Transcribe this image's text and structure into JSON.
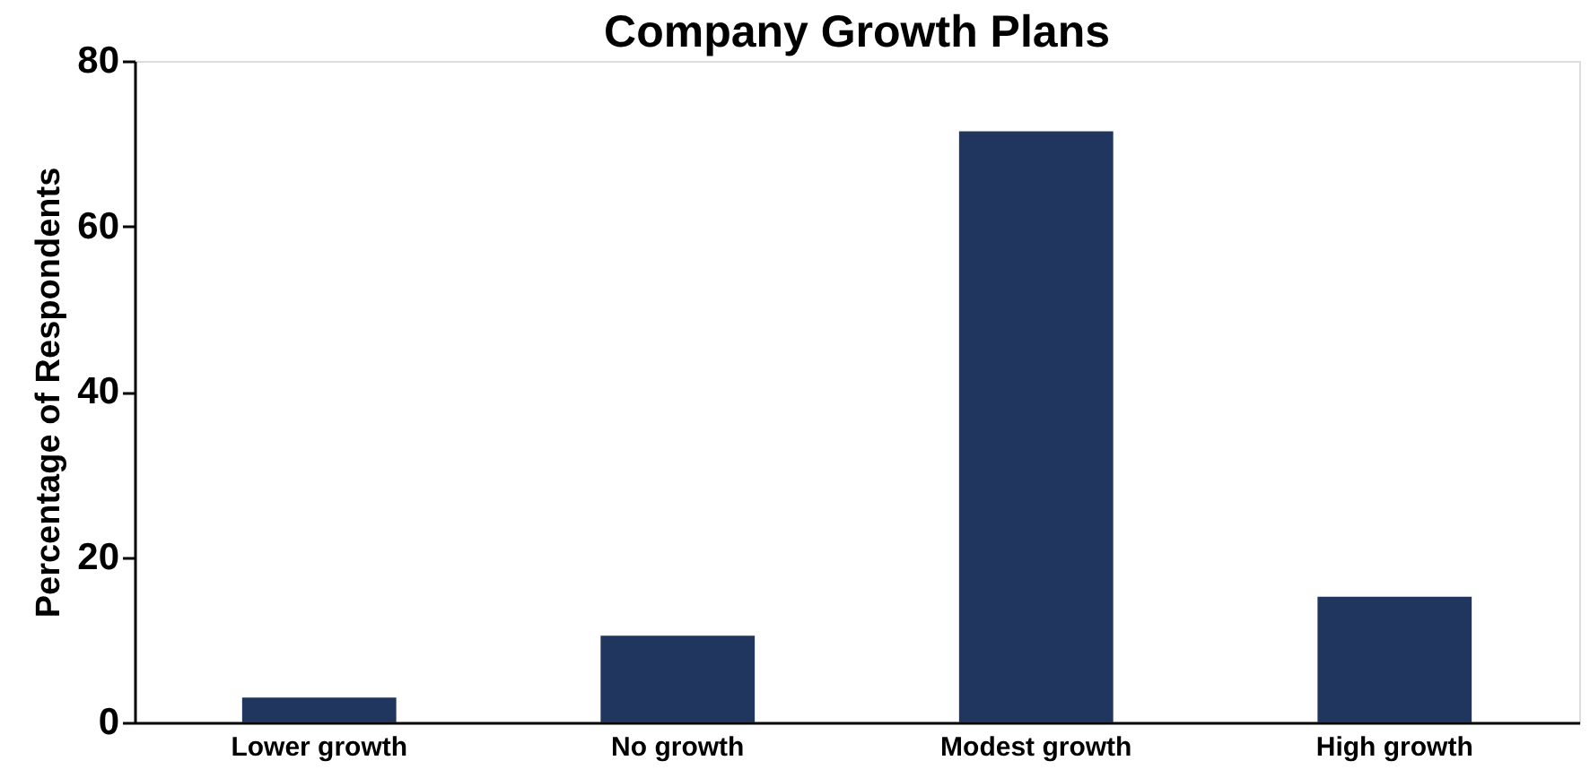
{
  "chart_data": {
    "type": "bar",
    "title": "Company Growth Plans",
    "ylabel": "Percentage of Respondents",
    "categories": [
      "Lower growth",
      "No growth",
      "Modest growth",
      "High growth"
    ],
    "values": [
      3,
      10.5,
      71.5,
      15.2
    ],
    "color": "#21365f",
    "ylim": [
      0,
      80
    ],
    "yticks": [
      0,
      20,
      40,
      60,
      80
    ],
    "grid": false
  }
}
